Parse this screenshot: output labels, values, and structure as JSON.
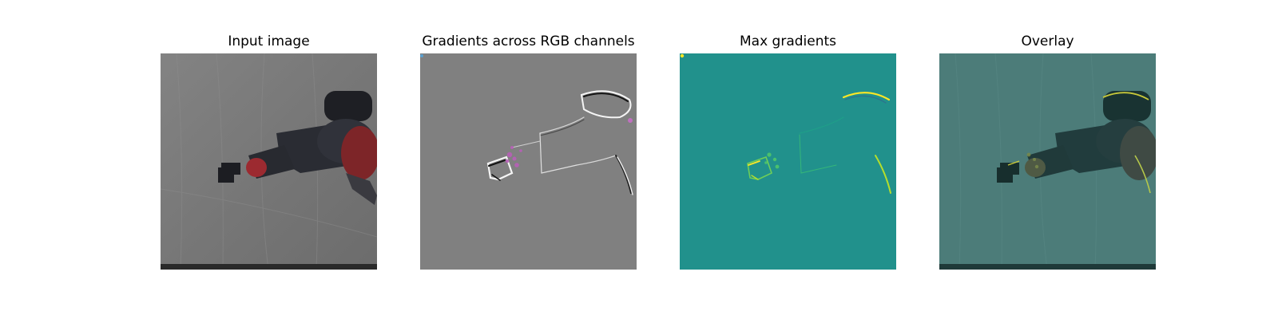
{
  "figure": {
    "panels": [
      {
        "id": "input",
        "title": "Input image"
      },
      {
        "id": "gradients",
        "title": "Gradients across RGB channels"
      },
      {
        "id": "max",
        "title": "Max gradients"
      },
      {
        "id": "overlay",
        "title": "Overlay"
      }
    ],
    "colors": {
      "background": "#ffffff",
      "gradient_gray": "#808080",
      "viridis_mid": "#21918c",
      "arm_dark": "#2a2c33",
      "arm_red": "#8b2a2e",
      "backdrop": "#7b7b7b"
    }
  }
}
